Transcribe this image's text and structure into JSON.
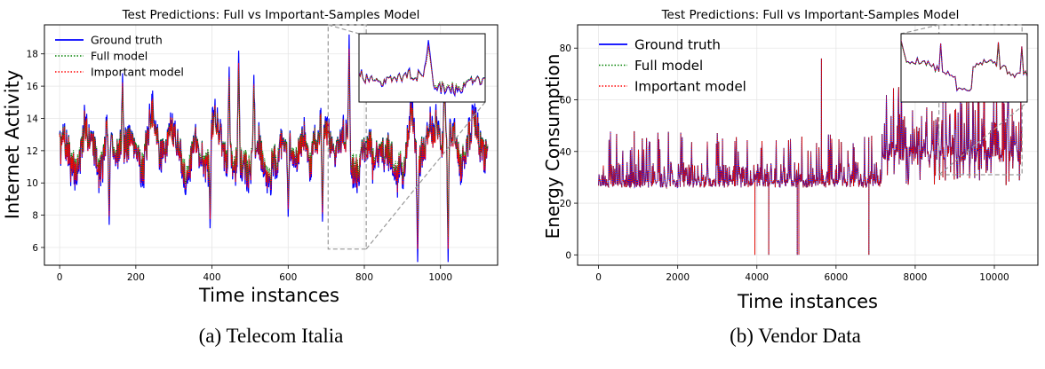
{
  "captions": {
    "a": "(a) Telecom Italia",
    "b": "(b) Vendor Data"
  },
  "colors": {
    "ground_truth": "#0000ff",
    "full_model": "#008000",
    "important_model": "#ff0000",
    "grid": "#e6e6e6",
    "connector": "#999999"
  },
  "chart_data": [
    {
      "type": "line",
      "title": "Test Predictions: Full vs Important-Samples Model",
      "xlabel": "Time instances",
      "ylabel": "Internet Activity",
      "xlim": [
        -40,
        1150
      ],
      "ylim": [
        4.9,
        19.8
      ],
      "xticks": [
        0,
        200,
        400,
        600,
        800,
        1000
      ],
      "yticks": [
        6,
        8,
        10,
        12,
        14,
        16,
        18
      ],
      "grid": true,
      "legend": {
        "position": "top-left",
        "entries": [
          "Ground truth",
          "Full model",
          "Important model"
        ]
      },
      "series": [
        {
          "name": "Ground truth",
          "style": "solid",
          "color": "#0000ff"
        },
        {
          "name": "Full model",
          "style": "dotted",
          "color": "#008000"
        },
        {
          "name": "Important model",
          "style": "dotted",
          "color": "#ff0000"
        }
      ],
      "n_points": 1125,
      "base_mean": 12.3,
      "noise_amp": 1.1,
      "highlights": [
        [
          130,
          7.4
        ],
        [
          165,
          16.8
        ],
        [
          395,
          7.2
        ],
        [
          445,
          17.2
        ],
        [
          470,
          18.2
        ],
        [
          510,
          16.7
        ],
        [
          600,
          7.9
        ],
        [
          690,
          7.6
        ],
        [
          760,
          19.2
        ],
        [
          940,
          5.1
        ],
        [
          1020,
          5.1
        ],
        [
          1010,
          16.7
        ]
      ],
      "inset": {
        "x_range": [
          705,
          805
        ],
        "y_range": [
          5.9,
          19.8
        ]
      }
    },
    {
      "type": "line",
      "title": "Test Predictions: Full vs Important-Samples Model",
      "xlabel": "Time instances",
      "ylabel": "Energy Consumption",
      "xlim": [
        -530,
        11100
      ],
      "ylim": [
        -4,
        89
      ],
      "xticks": [
        0,
        2000,
        4000,
        6000,
        8000,
        10000
      ],
      "yticks": [
        0,
        20,
        40,
        60,
        80
      ],
      "grid": true,
      "legend": {
        "position": "top-left",
        "entries": [
          "Ground truth",
          "Full model",
          "Important model"
        ]
      },
      "series": [
        {
          "name": "Ground truth",
          "style": "solid",
          "color": "#0000ff"
        },
        {
          "name": "Full model",
          "style": "dotted",
          "color": "#008000"
        },
        {
          "name": "Important model",
          "style": "dotted",
          "color": "#ff0000"
        }
      ],
      "n_points": 10700,
      "regime_change_x": 7150,
      "level_before": [
        26,
        36
      ],
      "level_after": [
        36,
        56
      ],
      "drops_to_zero_x": [
        3950,
        4300,
        5020,
        5060,
        6830
      ],
      "spikes": [
        [
          5630,
          76
        ],
        [
          8700,
          80
        ],
        [
          9750,
          80
        ],
        [
          10200,
          82
        ]
      ],
      "inset": {
        "x_range": [
          8600,
          10700
        ],
        "y_range": [
          31,
          89
        ]
      }
    }
  ]
}
